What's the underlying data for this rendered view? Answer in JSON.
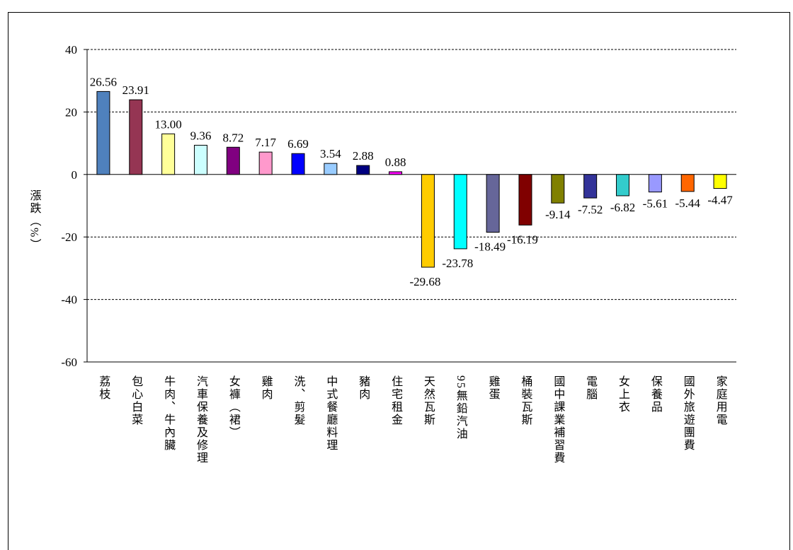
{
  "title": "",
  "chart_data": {
    "type": "bar",
    "ylabel": "漲跌（%）",
    "ylim": [
      -60,
      40
    ],
    "yticks": [
      40,
      20,
      0,
      -20,
      -40,
      -60
    ],
    "grid": true,
    "categories": [
      "荔枝",
      "包心白菜",
      "牛肉、牛內臟",
      "汽車保養及修理",
      "女褲（裙）",
      "雞肉",
      "洗、剪髮",
      "中式餐廳料理",
      "豬肉",
      "住宅租金",
      "天然瓦斯",
      "95無鉛汽油",
      "雞蛋",
      "桶裝瓦斯",
      "國中課業補習費",
      "電腦",
      "女上衣",
      "保養品",
      "國外旅遊團費",
      "家庭用電"
    ],
    "values": [
      26.56,
      23.91,
      13.0,
      9.36,
      8.72,
      7.17,
      6.69,
      3.54,
      2.88,
      0.88,
      -29.68,
      -23.78,
      -18.49,
      -16.19,
      -9.14,
      -7.52,
      -6.82,
      -5.61,
      -5.44,
      -4.47
    ],
    "labels": [
      "26.56",
      "23.91",
      "13.00",
      "9.36",
      "8.72",
      "7.17",
      "6.69",
      "3.54",
      "2.88",
      "0.88",
      "-29.68",
      "-23.78",
      "-18.49",
      "-16.19",
      "-9.14",
      "-7.52",
      "-6.82",
      "-5.61",
      "-5.44",
      "-4.47"
    ],
    "colors": [
      "#4f81bd",
      "#953553",
      "#ffff99",
      "#ccffff",
      "#800080",
      "#ff99cc",
      "#0000ff",
      "#99ccff",
      "#000080",
      "#ff00ff",
      "#ffcc00",
      "#00ffff",
      "#666699",
      "#800000",
      "#808000",
      "#333399",
      "#33cccc",
      "#9999ff",
      "#ff6600",
      "#ffff00"
    ]
  }
}
